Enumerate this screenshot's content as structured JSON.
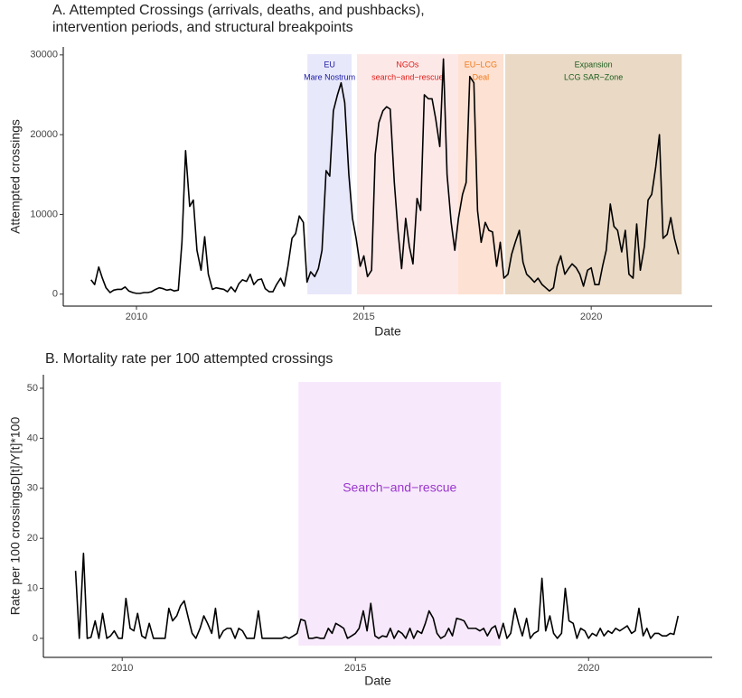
{
  "chart_data": [
    {
      "type": "line",
      "title": [
        "A. Attempted Crossings (arrivals, deaths, and pushbacks),",
        " intervention periods, and structural breakpoints"
      ],
      "x_label": "Date",
      "y_label": "Attempted crossings",
      "color": "#000000",
      "xlim": [
        2008.39,
        2022.66
      ],
      "ylim": [
        -1500,
        31000
      ],
      "xticks": [
        2010,
        2015,
        2020
      ],
      "yticks": [
        0,
        10000,
        20000,
        30000
      ],
      "regions": [
        {
          "label": [
            "EU",
            "Mare Nostrum"
          ],
          "start": 2013.76,
          "end": 2014.73,
          "color": "#e8e8fb",
          "text_color": "#1a1aa6"
        },
        {
          "label": [
            "NGOs",
            "search−and−rescue"
          ],
          "start": 2014.85,
          "end": 2017.07,
          "color": "#fde8e8",
          "text_color": "#e0201a"
        },
        {
          "label": [
            "EU−LCG",
            "Deal"
          ],
          "start": 2017.07,
          "end": 2018.07,
          "color": "#fde1d2",
          "text_color": "#f07818"
        },
        {
          "label": [
            "Expansion",
            "LCG SAR−Zone"
          ],
          "start": 2018.11,
          "end": 2021.99,
          "color": "#e9d9c5",
          "text_color": "#1c5e1c"
        }
      ],
      "x": [
        2009,
        2009.08,
        2009.17,
        2009.25,
        2009.33,
        2009.42,
        2009.5,
        2009.58,
        2009.67,
        2009.75,
        2009.83,
        2009.92,
        2010,
        2010.08,
        2010.17,
        2010.25,
        2010.33,
        2010.42,
        2010.5,
        2010.58,
        2010.67,
        2010.75,
        2010.83,
        2010.92,
        2011,
        2011.08,
        2011.17,
        2011.25,
        2011.33,
        2011.42,
        2011.5,
        2011.58,
        2011.67,
        2011.75,
        2011.83,
        2011.92,
        2012,
        2012.08,
        2012.17,
        2012.25,
        2012.33,
        2012.42,
        2012.5,
        2012.58,
        2012.67,
        2012.75,
        2012.83,
        2012.92,
        2013,
        2013.08,
        2013.17,
        2013.25,
        2013.33,
        2013.42,
        2013.5,
        2013.58,
        2013.67,
        2013.75,
        2013.83,
        2013.92,
        2014,
        2014.08,
        2014.17,
        2014.25,
        2014.33,
        2014.42,
        2014.5,
        2014.58,
        2014.67,
        2014.75,
        2014.83,
        2014.92,
        2015,
        2015.08,
        2015.17,
        2015.25,
        2015.33,
        2015.42,
        2015.5,
        2015.58,
        2015.67,
        2015.75,
        2015.83,
        2015.92,
        2016,
        2016.08,
        2016.17,
        2016.25,
        2016.33,
        2016.42,
        2016.5,
        2016.58,
        2016.67,
        2016.75,
        2016.83,
        2016.92,
        2017,
        2017.08,
        2017.17,
        2017.25,
        2017.33,
        2017.42,
        2017.5,
        2017.58,
        2017.67,
        2017.75,
        2017.83,
        2017.92,
        2018,
        2018.08,
        2018.17,
        2018.25,
        2018.33,
        2018.42,
        2018.5,
        2018.58,
        2018.67,
        2018.75,
        2018.83,
        2018.92,
        2019,
        2019.08,
        2019.17,
        2019.25,
        2019.33,
        2019.42,
        2019.5,
        2019.58,
        2019.67,
        2019.75,
        2019.83,
        2019.92,
        2020,
        2020.08,
        2020.17,
        2020.25,
        2020.33,
        2020.42,
        2020.5,
        2020.58,
        2020.67,
        2020.75,
        2020.83,
        2020.92,
        2021,
        2021.08,
        2021.17,
        2021.25,
        2021.33,
        2021.42,
        2021.5,
        2021.58,
        2021.67,
        2021.75,
        2021.83,
        2021.92
      ],
      "values": [
        1800,
        1200,
        3400,
        2000,
        800,
        200,
        500,
        600,
        600,
        900,
        400,
        200,
        100,
        100,
        200,
        200,
        300,
        600,
        800,
        700,
        500,
        600,
        400,
        500,
        6500,
        18000,
        11000,
        11800,
        5500,
        3000,
        7200,
        2500,
        600,
        800,
        700,
        600,
        300,
        900,
        300,
        1300,
        1800,
        1600,
        2500,
        1200,
        1800,
        1900,
        700,
        300,
        300,
        1200,
        2000,
        1000,
        3500,
        7000,
        7600,
        9800,
        9000,
        1500,
        2800,
        2200,
        3200,
        5500,
        15500,
        14800,
        23000,
        25000,
        26500,
        24000,
        15000,
        9500,
        7000,
        3500,
        4800,
        2200,
        3000,
        17500,
        21500,
        23000,
        23500,
        23200,
        14000,
        8000,
        3200,
        9500,
        6000,
        3800,
        12000,
        10500,
        25000,
        24500,
        24500,
        22000,
        18500,
        29500,
        15000,
        9000,
        5500,
        9500,
        12500,
        14000,
        27300,
        26500,
        10500,
        6500,
        9000,
        8000,
        7800,
        3500,
        6500,
        2000,
        2500,
        5000,
        6500,
        8000,
        4000,
        2500,
        2000,
        1500,
        2000,
        1200,
        800,
        400,
        800,
        3500,
        4800,
        2500,
        3200,
        3800,
        3300,
        2500,
        1000,
        3000,
        3300,
        1200,
        1200,
        3500,
        5500,
        11300,
        8500,
        8000,
        5300,
        8000,
        2500,
        2000,
        8800,
        3000,
        6000,
        11800,
        12500,
        16000,
        20000,
        7000,
        7500,
        9600,
        7000,
        5000
      ]
    },
    {
      "type": "line",
      "title": [
        "B. Mortality rate per 100 attempted crossings"
      ],
      "x_label": "Date",
      "y_label": "Rate per 100 crossingsD[t]/Y[t]*100",
      "color": "#000000",
      "xlim": [
        2008.31,
        2022.65
      ],
      "ylim": [
        -3.8,
        52.7
      ],
      "xticks": [
        2010,
        2015,
        2020
      ],
      "yticks": [
        0,
        10,
        20,
        30,
        40,
        50
      ],
      "regions": [
        {
          "label": [
            "Search−and−rescue"
          ],
          "start": 2013.78,
          "end": 2018.12,
          "color": "#f7e9fb",
          "text_color": "#9a35cc"
        }
      ],
      "x": [
        2009,
        2009.08,
        2009.17,
        2009.25,
        2009.33,
        2009.42,
        2009.5,
        2009.58,
        2009.67,
        2009.75,
        2009.83,
        2009.92,
        2010,
        2010.08,
        2010.17,
        2010.25,
        2010.33,
        2010.42,
        2010.5,
        2010.58,
        2010.67,
        2010.75,
        2010.83,
        2010.92,
        2011,
        2011.08,
        2011.17,
        2011.25,
        2011.33,
        2011.42,
        2011.5,
        2011.58,
        2011.67,
        2011.75,
        2011.83,
        2011.92,
        2012,
        2012.08,
        2012.17,
        2012.25,
        2012.33,
        2012.42,
        2012.5,
        2012.58,
        2012.67,
        2012.75,
        2012.83,
        2012.92,
        2013,
        2013.08,
        2013.17,
        2013.25,
        2013.33,
        2013.42,
        2013.5,
        2013.58,
        2013.67,
        2013.75,
        2013.83,
        2013.92,
        2014,
        2014.08,
        2014.17,
        2014.25,
        2014.33,
        2014.42,
        2014.5,
        2014.58,
        2014.67,
        2014.75,
        2014.83,
        2014.92,
        2015,
        2015.08,
        2015.17,
        2015.25,
        2015.33,
        2015.42,
        2015.5,
        2015.58,
        2015.67,
        2015.75,
        2015.83,
        2015.92,
        2016,
        2016.08,
        2016.17,
        2016.25,
        2016.33,
        2016.42,
        2016.5,
        2016.58,
        2016.67,
        2016.75,
        2016.83,
        2016.92,
        2017,
        2017.08,
        2017.17,
        2017.25,
        2017.33,
        2017.42,
        2017.5,
        2017.58,
        2017.67,
        2017.75,
        2017.83,
        2017.92,
        2018,
        2018.08,
        2018.17,
        2018.25,
        2018.33,
        2018.42,
        2018.5,
        2018.58,
        2018.67,
        2018.75,
        2018.83,
        2018.92,
        2019,
        2019.08,
        2019.17,
        2019.25,
        2019.33,
        2019.42,
        2019.5,
        2019.58,
        2019.67,
        2019.75,
        2019.83,
        2019.92,
        2020,
        2020.08,
        2020.17,
        2020.25,
        2020.33,
        2020.42,
        2020.5,
        2020.58,
        2020.67,
        2020.75,
        2020.83,
        2020.92,
        2021,
        2021.08,
        2021.17,
        2021.25,
        2021.33,
        2021.42,
        2021.5,
        2021.58,
        2021.67,
        2021.75,
        2021.83,
        2021.92
      ],
      "values": [
        13.5,
        0,
        17,
        0,
        0.2,
        3.5,
        0,
        5,
        0,
        0.5,
        1.5,
        0,
        0,
        8,
        2,
        1.5,
        5,
        0.5,
        0,
        3,
        0,
        0,
        0,
        0,
        6,
        3.5,
        4.5,
        6.5,
        7.5,
        4,
        1,
        0,
        2,
        4.5,
        3,
        1,
        6,
        0,
        1.5,
        2,
        2,
        0,
        2,
        1.5,
        0,
        0,
        0,
        5.5,
        0,
        0,
        0,
        0,
        0,
        0,
        0.3,
        0,
        0.5,
        1,
        3.8,
        3.5,
        0,
        0,
        0.2,
        0,
        0,
        2,
        1,
        3,
        2.5,
        2,
        0,
        0.5,
        1,
        2,
        5.5,
        1.5,
        7,
        0.5,
        0,
        0.5,
        0.3,
        2,
        0,
        1.5,
        1,
        0,
        2,
        0,
        1.5,
        1,
        3,
        5.5,
        4,
        1,
        0,
        0.5,
        2,
        0.5,
        4,
        3.8,
        3.5,
        2,
        2,
        2,
        1.5,
        2,
        0.5,
        2,
        2.5,
        0,
        3,
        0,
        1,
        6,
        3,
        0.5,
        4,
        0,
        1,
        1.5,
        12,
        1.5,
        4.5,
        1,
        0,
        1,
        10,
        3.5,
        3,
        0,
        2,
        1.5,
        0,
        1,
        0.5,
        2,
        0.5,
        1.5,
        1,
        2,
        1.5,
        2,
        2.5,
        1,
        1.5,
        6,
        0.5,
        2,
        0,
        1,
        1,
        0.5,
        0.5,
        1,
        0.8,
        4.5
      ]
    }
  ]
}
